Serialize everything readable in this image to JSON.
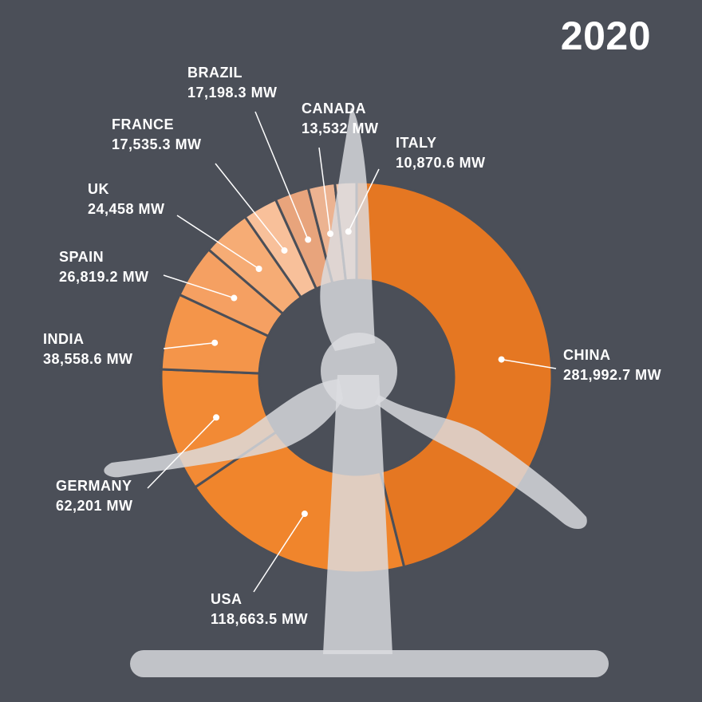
{
  "chart_data": {
    "type": "pie",
    "title": "2020",
    "categories": [
      "CHINA",
      "USA",
      "GERMANY",
      "INDIA",
      "SPAIN",
      "UK",
      "FRANCE",
      "BRAZIL",
      "CANADA",
      "ITALY"
    ],
    "values": [
      281992.7,
      118663.5,
      62201,
      38558.6,
      26819.2,
      24458,
      17535.3,
      17198.3,
      13532,
      10870.6
    ],
    "value_labels": [
      "281,992.7 MW",
      "118,663.5 MW",
      "62,201 MW",
      "38,558.6 MW",
      "26,819.2 MW",
      "24,458 MW",
      "17,535.3 MW",
      "17,198.3 MW",
      "13,532 MW",
      "10,870.6 MW"
    ],
    "colors": [
      "#e57722",
      "#f0852c",
      "#f28a35",
      "#f4954a",
      "#f5a062",
      "#f6ac75",
      "#f8c09a",
      "#e8a47c",
      "#ecb391",
      "#f0c4a8"
    ],
    "donut": true
  }
}
